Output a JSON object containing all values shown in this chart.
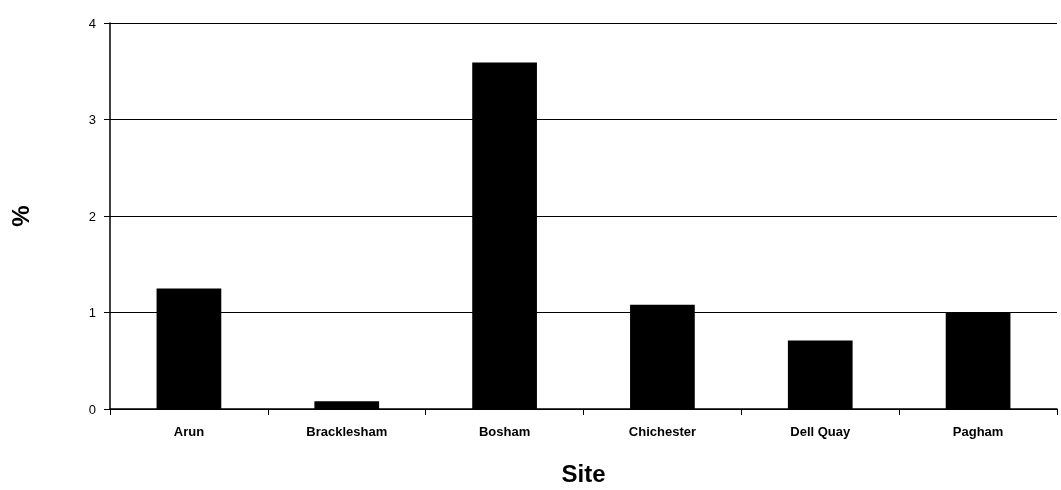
{
  "chart_data": {
    "type": "bar",
    "xlabel": "Site",
    "ylabel": "%",
    "categories": [
      "Arun",
      "Bracklesham",
      "Bosham",
      "Chichester",
      "Dell Quay",
      "Pagham"
    ],
    "values": [
      1.25,
      0.08,
      3.59,
      1.08,
      0.71,
      1.0
    ],
    "color": "#000000",
    "ylim": [
      0,
      4
    ],
    "yticks": [
      0,
      1,
      2,
      3,
      4
    ],
    "grid": "y"
  }
}
